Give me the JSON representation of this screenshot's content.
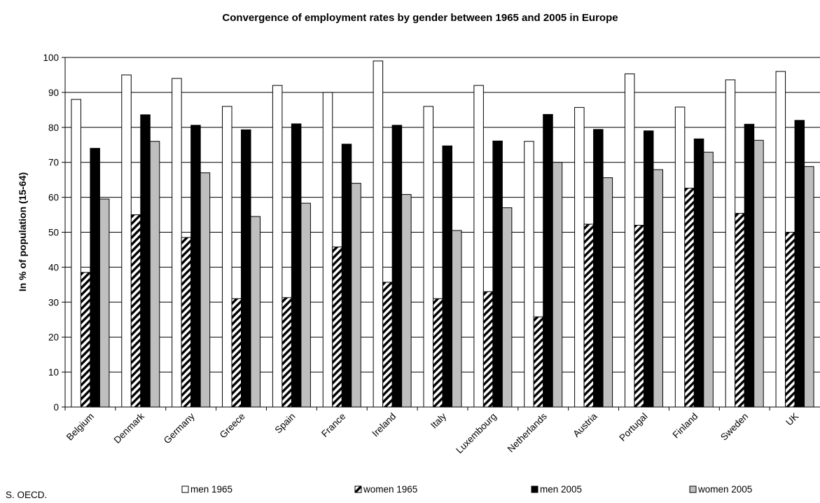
{
  "source_note": "S. OECD.",
  "chart_data": {
    "type": "bar",
    "title": "Convergence of employment rates by gender between 1965 and 2005 in Europe",
    "xlabel": "",
    "ylabel": "In % of population (15-64)",
    "ylim": [
      0,
      100
    ],
    "yticks": [
      "0",
      "10",
      "20",
      "30",
      "40",
      "50",
      "60",
      "70",
      "80",
      "90",
      "100"
    ],
    "grid": true,
    "legend_position": "bottom",
    "categories": [
      "Belgium",
      "Denmark",
      "Germany",
      "Greece",
      "Spain",
      "France",
      "Ireland",
      "Italy",
      "Luxembourg",
      "Netherlands",
      "Austria",
      "Portugal",
      "Finland",
      "Sweden",
      "UK"
    ],
    "series": [
      {
        "name": "men 1965",
        "style": "white",
        "fill": "#ffffff",
        "values": [
          88,
          95,
          94,
          86,
          92,
          90,
          99,
          86,
          92,
          76,
          85.7,
          95.3,
          85.8,
          93.6,
          96
        ]
      },
      {
        "name": "women 1965",
        "style": "hatched",
        "fill": "#000000",
        "values": [
          38.5,
          55,
          48.5,
          31,
          31.3,
          45.8,
          35.7,
          31,
          33,
          25.8,
          52.3,
          52,
          62.6,
          55.4,
          50
        ]
      },
      {
        "name": "men 2005",
        "style": "black",
        "fill": "#000000",
        "values": [
          74,
          83.6,
          80.6,
          79.3,
          81,
          75.2,
          80.6,
          74.7,
          76.1,
          83.7,
          79.4,
          79,
          76.7,
          80.9,
          82
        ]
      },
      {
        "name": "women 2005",
        "style": "gray",
        "fill": "#bfbfbf",
        "values": [
          59.5,
          76,
          67,
          54.5,
          58.3,
          64,
          60.8,
          50.5,
          57,
          70,
          65.6,
          67.9,
          72.9,
          76.3,
          68.8
        ]
      }
    ]
  }
}
